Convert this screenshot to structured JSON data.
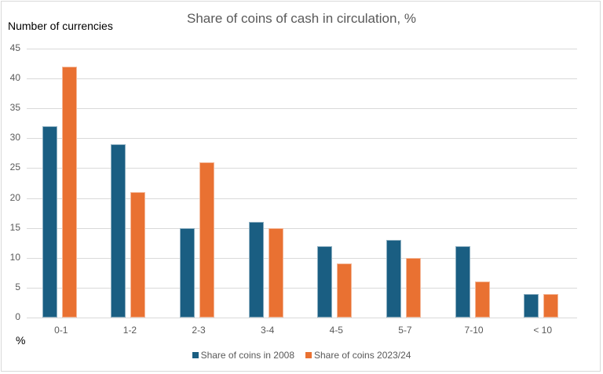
{
  "chart_data": {
    "type": "bar",
    "title": "Share of coins of cash in circulation, %",
    "ylabel": "Number of currencies",
    "xlabel": "%",
    "categories": [
      "0-1",
      "1-2",
      "2-3",
      "3-4",
      "4-5",
      "5-7",
      "7-10",
      "< 10"
    ],
    "series": [
      {
        "name": "Share of coins in 2008",
        "color": "#1a5e82",
        "values": [
          32,
          29,
          15,
          16,
          12,
          13,
          12,
          4
        ]
      },
      {
        "name": "Share of coins 2023/24",
        "color": "#e97132",
        "values": [
          42,
          21,
          26,
          15,
          9,
          10,
          6,
          4
        ]
      }
    ],
    "ylim": [
      0,
      45
    ],
    "yticks": [
      0,
      5,
      10,
      15,
      20,
      25,
      30,
      35,
      40,
      45
    ],
    "grid": true,
    "legend_position": "bottom"
  }
}
